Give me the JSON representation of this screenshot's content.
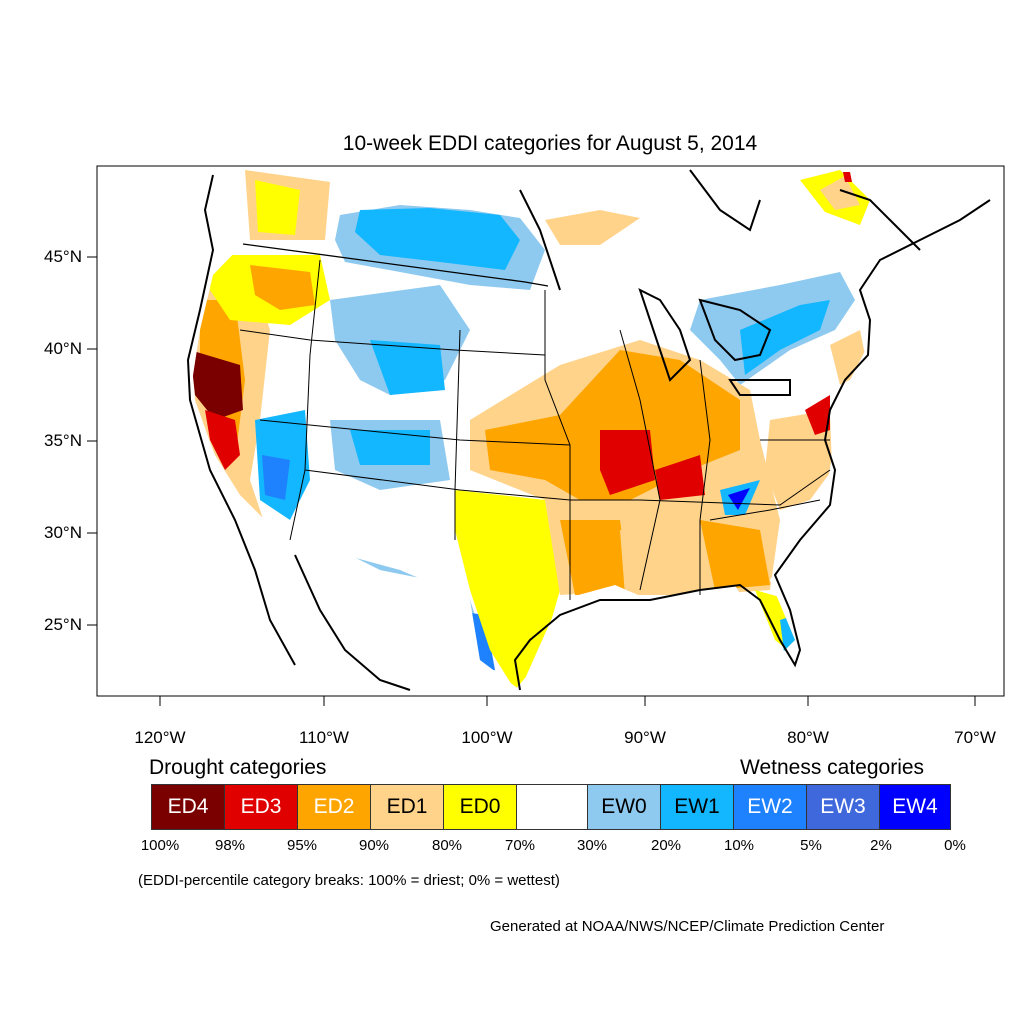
{
  "title": "10-week EDDI categories for August 5, 2014",
  "map": {
    "lat_labels": [
      "45°N",
      "40°N",
      "35°N",
      "30°N",
      "25°N"
    ],
    "lon_labels": [
      "120°W",
      "110°W",
      "100°W",
      "90°W",
      "80°W",
      "70°W"
    ],
    "colors": {
      "ED4": "#7a0000",
      "ED3": "#e00000",
      "ED2": "#ffa500",
      "ED1": "#ffd38a",
      "ED0": "#ffff00",
      "neutral": "#ffffff",
      "EW0": "#8ec9ef",
      "EW1": "#12b7ff",
      "EW2": "#1e82ff",
      "EW3": "#4068dd",
      "EW4": "#0000ff"
    }
  },
  "legend": {
    "drought_heading": "Drought categories",
    "wetness_heading": "Wetness categories",
    "categories": [
      {
        "label": "ED4",
        "color": "#7a0000",
        "text_color": "#ffffff"
      },
      {
        "label": "ED3",
        "color": "#e00000",
        "text_color": "#ffffff"
      },
      {
        "label": "ED2",
        "color": "#ffa500",
        "text_color": "#ffffff"
      },
      {
        "label": "ED1",
        "color": "#ffd38a",
        "text_color": "#000000"
      },
      {
        "label": "ED0",
        "color": "#ffff00",
        "text_color": "#000000"
      },
      {
        "label": "",
        "color": "#ffffff",
        "text_color": "#000000"
      },
      {
        "label": "EW0",
        "color": "#8ec9ef",
        "text_color": "#000000"
      },
      {
        "label": "EW1",
        "color": "#12b7ff",
        "text_color": "#000000"
      },
      {
        "label": "EW2",
        "color": "#1e82ff",
        "text_color": "#ffffff"
      },
      {
        "label": "EW3",
        "color": "#4068dd",
        "text_color": "#ffffff"
      },
      {
        "label": "EW4",
        "color": "#0000ff",
        "text_color": "#ffffff"
      }
    ],
    "percent_labels": [
      "100%",
      "98%",
      "95%",
      "90%",
      "80%",
      "70%",
      "30%",
      "20%",
      "10%",
      "5%",
      "2%",
      "0%"
    ]
  },
  "note": "(EDDI-percentile category breaks: 100% = driest; 0% = wettest)",
  "credit": "Generated at NOAA/NWS/NCEP/Climate Prediction Center"
}
